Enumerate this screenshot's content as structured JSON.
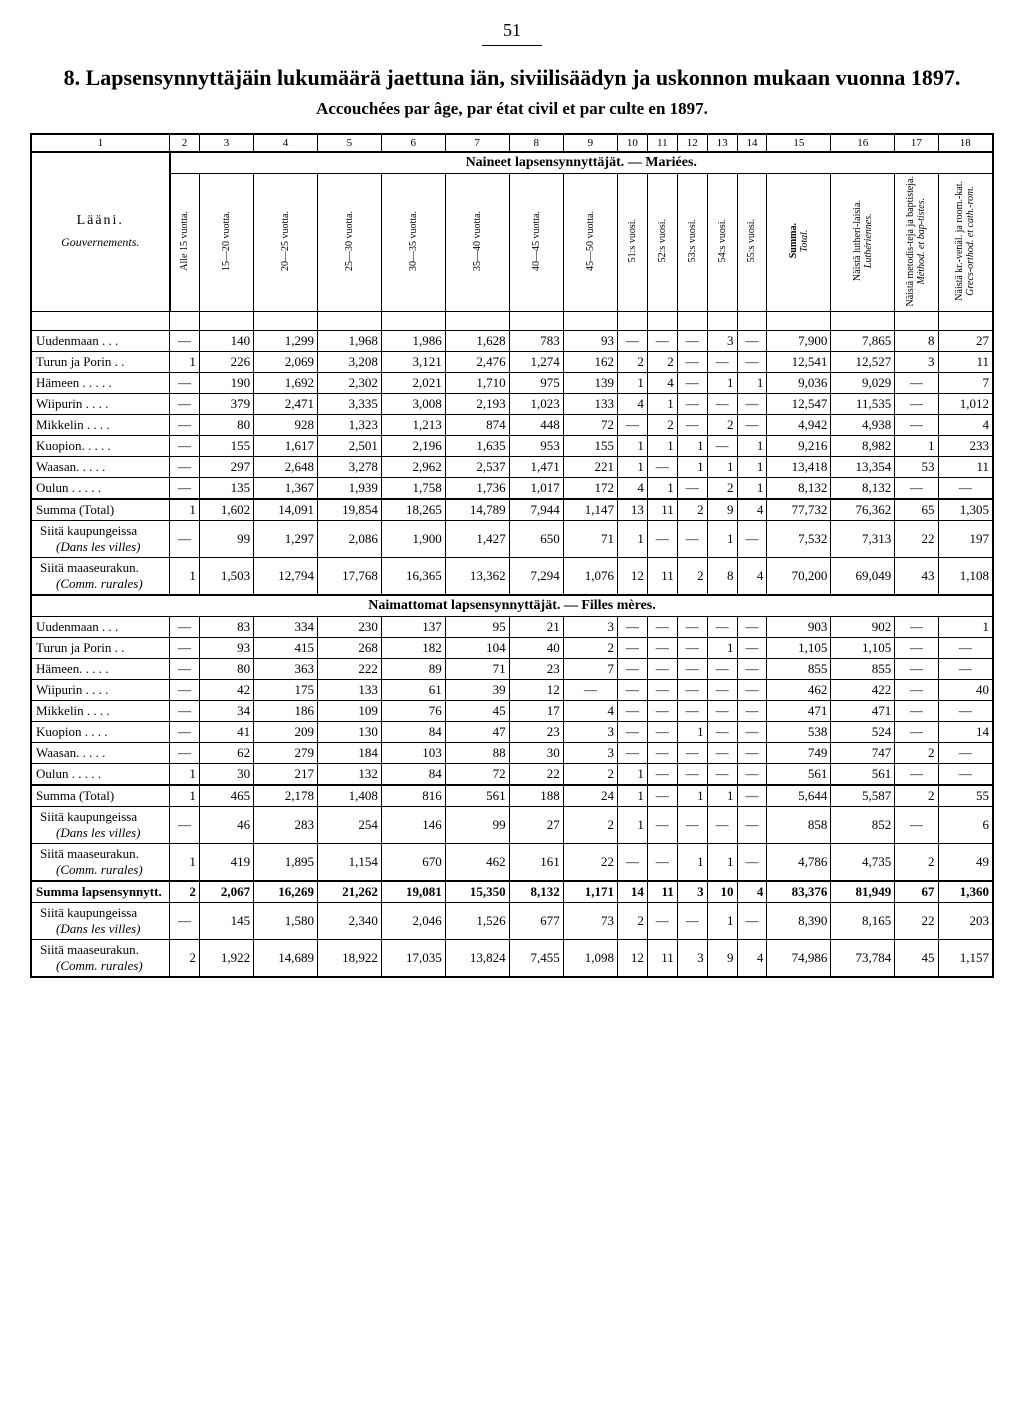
{
  "page_number": "51",
  "title_fi": "8. Lapsensynnyttäjäin lukumäärä jaettuna iän, siviilisäädyn ja uskonnon mukaan vuonna 1897.",
  "title_fr": "Accouchées par âge, par état civil et par culte en 1897.",
  "col_numbers": [
    "1",
    "2",
    "3",
    "4",
    "5",
    "6",
    "7",
    "8",
    "9",
    "10",
    "11",
    "12",
    "13",
    "14",
    "15",
    "16",
    "17",
    "18"
  ],
  "section1_header": "Naineet lapsensynnyttäjät. — Mariées.",
  "section2_header": "Naimattomat lapsensynnyttäjät. — Filles mères.",
  "gouv_header_fi": "Lääni.",
  "gouv_header_fr": "Gouvernements.",
  "age_headers": [
    "Alle 15 vuotta.",
    "15—20 vuotta.",
    "20—25 vuotta.",
    "25—30 vuotta.",
    "30—35 vuotta.",
    "35—40 vuotta.",
    "40—45 vuotta.",
    "45—50 vuotta.",
    "51:s vuosi.",
    "52:s vuosi.",
    "53:s vuosi.",
    "54:s vuosi.",
    "55:s vuosi.",
    "Summa.",
    "Näistä lutheri-laisia.",
    "Näistä metodis-teja ja baptisteja.",
    "Näistä kr.-venäl. ja room.-kat."
  ],
  "age_headers_fr": [
    "Total.",
    "Luthériennes.",
    "Méthod. et bap-tistes.",
    "Grecs-orthod. et cath.-rom."
  ],
  "rows_married": [
    {
      "name": "Uudenmaan . . .",
      "v": [
        "—",
        "140",
        "1,299",
        "1,968",
        "1,986",
        "1,628",
        "783",
        "93",
        "—",
        "—",
        "—",
        "3",
        "—",
        "7,900",
        "7,865",
        "8",
        "27"
      ]
    },
    {
      "name": "Turun ja Porin . .",
      "v": [
        "1",
        "226",
        "2,069",
        "3,208",
        "3,121",
        "2,476",
        "1,274",
        "162",
        "2",
        "2",
        "—",
        "—",
        "—",
        "12,541",
        "12,527",
        "3",
        "11"
      ]
    },
    {
      "name": "Hämeen . . . . .",
      "v": [
        "—",
        "190",
        "1,692",
        "2,302",
        "2,021",
        "1,710",
        "975",
        "139",
        "1",
        "4",
        "—",
        "1",
        "1",
        "9,036",
        "9,029",
        "—",
        "7"
      ]
    },
    {
      "name": "Wiipurin . . . .",
      "v": [
        "—",
        "379",
        "2,471",
        "3,335",
        "3,008",
        "2,193",
        "1,023",
        "133",
        "4",
        "1",
        "—",
        "—",
        "—",
        "12,547",
        "11,535",
        "—",
        "1,012"
      ]
    },
    {
      "name": "Mikkelin . . . .",
      "v": [
        "—",
        "80",
        "928",
        "1,323",
        "1,213",
        "874",
        "448",
        "72",
        "—",
        "2",
        "—",
        "2",
        "—",
        "4,942",
        "4,938",
        "—",
        "4"
      ]
    },
    {
      "name": "Kuopion. . . . .",
      "v": [
        "—",
        "155",
        "1,617",
        "2,501",
        "2,196",
        "1,635",
        "953",
        "155",
        "1",
        "1",
        "1",
        "—",
        "1",
        "9,216",
        "8,982",
        "1",
        "233"
      ]
    },
    {
      "name": "Waasan. . . . .",
      "v": [
        "—",
        "297",
        "2,648",
        "3,278",
        "2,962",
        "2,537",
        "1,471",
        "221",
        "1",
        "—",
        "1",
        "1",
        "1",
        "13,418",
        "13,354",
        "53",
        "11"
      ]
    },
    {
      "name": "Oulun . . . . .",
      "v": [
        "—",
        "135",
        "1,367",
        "1,939",
        "1,758",
        "1,736",
        "1,017",
        "172",
        "4",
        "1",
        "—",
        "2",
        "1",
        "8,132",
        "8,132",
        "—",
        "—"
      ]
    }
  ],
  "married_total": {
    "name": "Summa (Total)",
    "v": [
      "1",
      "1,602",
      "14,091",
      "19,854",
      "18,265",
      "14,789",
      "7,944",
      "1,147",
      "13",
      "11",
      "2",
      "9",
      "4",
      "77,732",
      "76,362",
      "65",
      "1,305"
    ]
  },
  "married_villes_label": "Siitä kaupungeissa",
  "married_villes": {
    "name": "(Dans les villes)",
    "v": [
      "—",
      "99",
      "1,297",
      "2,086",
      "1,900",
      "1,427",
      "650",
      "71",
      "1",
      "—",
      "—",
      "1",
      "—",
      "7,532",
      "7,313",
      "22",
      "197"
    ]
  },
  "married_rurales_label": "Siitä maaseurakun.",
  "married_rurales": {
    "name": "(Comm. rurales)",
    "v": [
      "1",
      "1,503",
      "12,794",
      "17,768",
      "16,365",
      "13,362",
      "7,294",
      "1,076",
      "12",
      "11",
      "2",
      "8",
      "4",
      "70,200",
      "69,049",
      "43",
      "1,108"
    ]
  },
  "rows_unmarried": [
    {
      "name": "Uudenmaan . . .",
      "v": [
        "—",
        "83",
        "334",
        "230",
        "137",
        "95",
        "21",
        "3",
        "—",
        "—",
        "—",
        "—",
        "—",
        "903",
        "902",
        "—",
        "1"
      ]
    },
    {
      "name": "Turun ja Porin . .",
      "v": [
        "—",
        "93",
        "415",
        "268",
        "182",
        "104",
        "40",
        "2",
        "—",
        "—",
        "—",
        "1",
        "—",
        "1,105",
        "1,105",
        "—",
        "—"
      ]
    },
    {
      "name": "Hämeen. . . . .",
      "v": [
        "—",
        "80",
        "363",
        "222",
        "89",
        "71",
        "23",
        "7",
        "—",
        "—",
        "—",
        "—",
        "—",
        "855",
        "855",
        "—",
        "—"
      ]
    },
    {
      "name": "Wiipurin . . . .",
      "v": [
        "—",
        "42",
        "175",
        "133",
        "61",
        "39",
        "12",
        "—",
        "—",
        "—",
        "—",
        "—",
        "—",
        "462",
        "422",
        "—",
        "40"
      ]
    },
    {
      "name": "Mikkelin . . . .",
      "v": [
        "—",
        "34",
        "186",
        "109",
        "76",
        "45",
        "17",
        "4",
        "—",
        "—",
        "—",
        "—",
        "—",
        "471",
        "471",
        "—",
        "—"
      ]
    },
    {
      "name": "Kuopion . . . .",
      "v": [
        "—",
        "41",
        "209",
        "130",
        "84",
        "47",
        "23",
        "3",
        "—",
        "—",
        "1",
        "—",
        "—",
        "538",
        "524",
        "—",
        "14"
      ]
    },
    {
      "name": "Waasan. . . . .",
      "v": [
        "—",
        "62",
        "279",
        "184",
        "103",
        "88",
        "30",
        "3",
        "—",
        "—",
        "—",
        "—",
        "—",
        "749",
        "747",
        "2",
        "—"
      ]
    },
    {
      "name": "Oulun . . . . .",
      "v": [
        "1",
        "30",
        "217",
        "132",
        "84",
        "72",
        "22",
        "2",
        "1",
        "—",
        "—",
        "—",
        "—",
        "561",
        "561",
        "—",
        "—"
      ]
    }
  ],
  "unmarried_total": {
    "name": "Summa (Total)",
    "v": [
      "1",
      "465",
      "2,178",
      "1,408",
      "816",
      "561",
      "188",
      "24",
      "1",
      "—",
      "1",
      "1",
      "—",
      "5,644",
      "5,587",
      "2",
      "55"
    ]
  },
  "unmarried_villes": {
    "name": "(Dans les villes)",
    "v": [
      "—",
      "46",
      "283",
      "254",
      "146",
      "99",
      "27",
      "2",
      "1",
      "—",
      "—",
      "—",
      "—",
      "858",
      "852",
      "—",
      "6"
    ]
  },
  "unmarried_rurales": {
    "name": "(Comm. rurales)",
    "v": [
      "1",
      "419",
      "1,895",
      "1,154",
      "670",
      "462",
      "161",
      "22",
      "—",
      "—",
      "1",
      "1",
      "—",
      "4,786",
      "4,735",
      "2",
      "49"
    ]
  },
  "grand_total": {
    "name": "Summa lapsensynnytt.",
    "v": [
      "2",
      "2,067",
      "16,269",
      "21,262",
      "19,081",
      "15,350",
      "8,132",
      "1,171",
      "14",
      "11",
      "3",
      "10",
      "4",
      "83,376",
      "81,949",
      "67",
      "1,360"
    ]
  },
  "grand_villes": {
    "name": "(Dans les villes)",
    "v": [
      "—",
      "145",
      "1,580",
      "2,340",
      "2,046",
      "1,526",
      "677",
      "73",
      "2",
      "—",
      "—",
      "1",
      "—",
      "8,390",
      "8,165",
      "22",
      "203"
    ]
  },
  "grand_rurales": {
    "name": "(Comm. rurales)",
    "v": [
      "2",
      "1,922",
      "14,689",
      "18,922",
      "17,035",
      "13,824",
      "7,455",
      "1,098",
      "12",
      "11",
      "3",
      "9",
      "4",
      "74,986",
      "73,784",
      "45",
      "1,157"
    ]
  }
}
